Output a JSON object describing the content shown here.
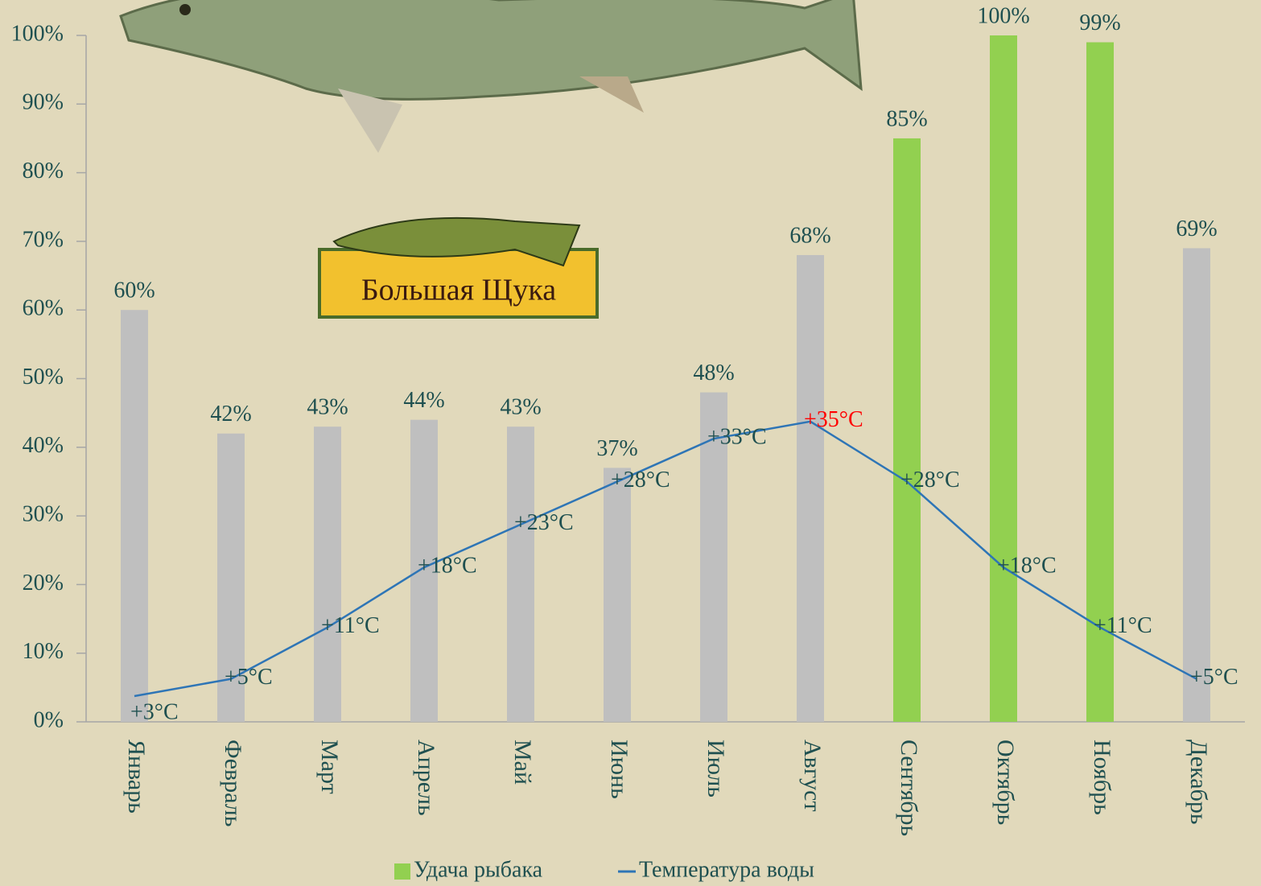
{
  "chart_data": {
    "type": "bar-line",
    "categories": [
      "Январь",
      "Февраль",
      "Март",
      "Апрель",
      "Май",
      "Июнь",
      "Июль",
      "Август",
      "Сентябрь",
      "Октябрь",
      "Ноябрь",
      "Декабрь"
    ],
    "series": [
      {
        "name": "Удача рыбака",
        "color": "#92d050",
        "colors": [
          "#bfbfbf",
          "#bfbfbf",
          "#bfbfbf",
          "#bfbfbf",
          "#bfbfbf",
          "#bfbfbf",
          "#bfbfbf",
          "#bfbfbf",
          "#92d050",
          "#92d050",
          "#92d050",
          "#bfbfbf"
        ],
        "values": [
          60,
          42,
          43,
          44,
          43,
          37,
          48,
          68,
          85,
          100,
          99,
          69
        ],
        "value_labels": [
          "60%",
          "42%",
          "43%",
          "44%",
          "43%",
          "37%",
          "48%",
          "68%",
          "85%",
          "100%",
          "99%",
          "69%"
        ]
      },
      {
        "name": "Температура воды",
        "color": "#2e75b6",
        "axis": "y2",
        "values": [
          3,
          5,
          11,
          18,
          23,
          28,
          33,
          35,
          28,
          18,
          11,
          5
        ],
        "value_labels": [
          "+3°C",
          "+5°C",
          "+11°C",
          "+18°C",
          "+23°C",
          "+28°C",
          "+33°C",
          "+35°C",
          "+28°C",
          "+18°C",
          "+11°C",
          "+5°C"
        ],
        "value_label_colors": [
          "#1f5050",
          "#1f5050",
          "#1f5050",
          "#1f5050",
          "#1f5050",
          "#1f5050",
          "#1f5050",
          "#ff0000",
          "#1f5050",
          "#1f5050",
          "#1f5050",
          "#1f5050"
        ]
      }
    ],
    "ylim": [
      0,
      100
    ],
    "yticks": [
      {
        "value": 0,
        "label": "0%"
      },
      {
        "value": 10,
        "label": "10%"
      },
      {
        "value": 20,
        "label": "20%"
      },
      {
        "value": 30,
        "label": "30%"
      },
      {
        "value": 40,
        "label": "40%"
      },
      {
        "value": 50,
        "label": "50%"
      },
      {
        "value": 60,
        "label": "60%"
      },
      {
        "value": 70,
        "label": "70%"
      },
      {
        "value": 80,
        "label": "80%"
      },
      {
        "value": 90,
        "label": "90%"
      },
      {
        "value": 100,
        "label": "100%"
      }
    ],
    "y2lim": [
      0,
      80
    ],
    "annotations": [
      "Большая Щука"
    ],
    "legend": "bottom",
    "grid": false
  }
}
